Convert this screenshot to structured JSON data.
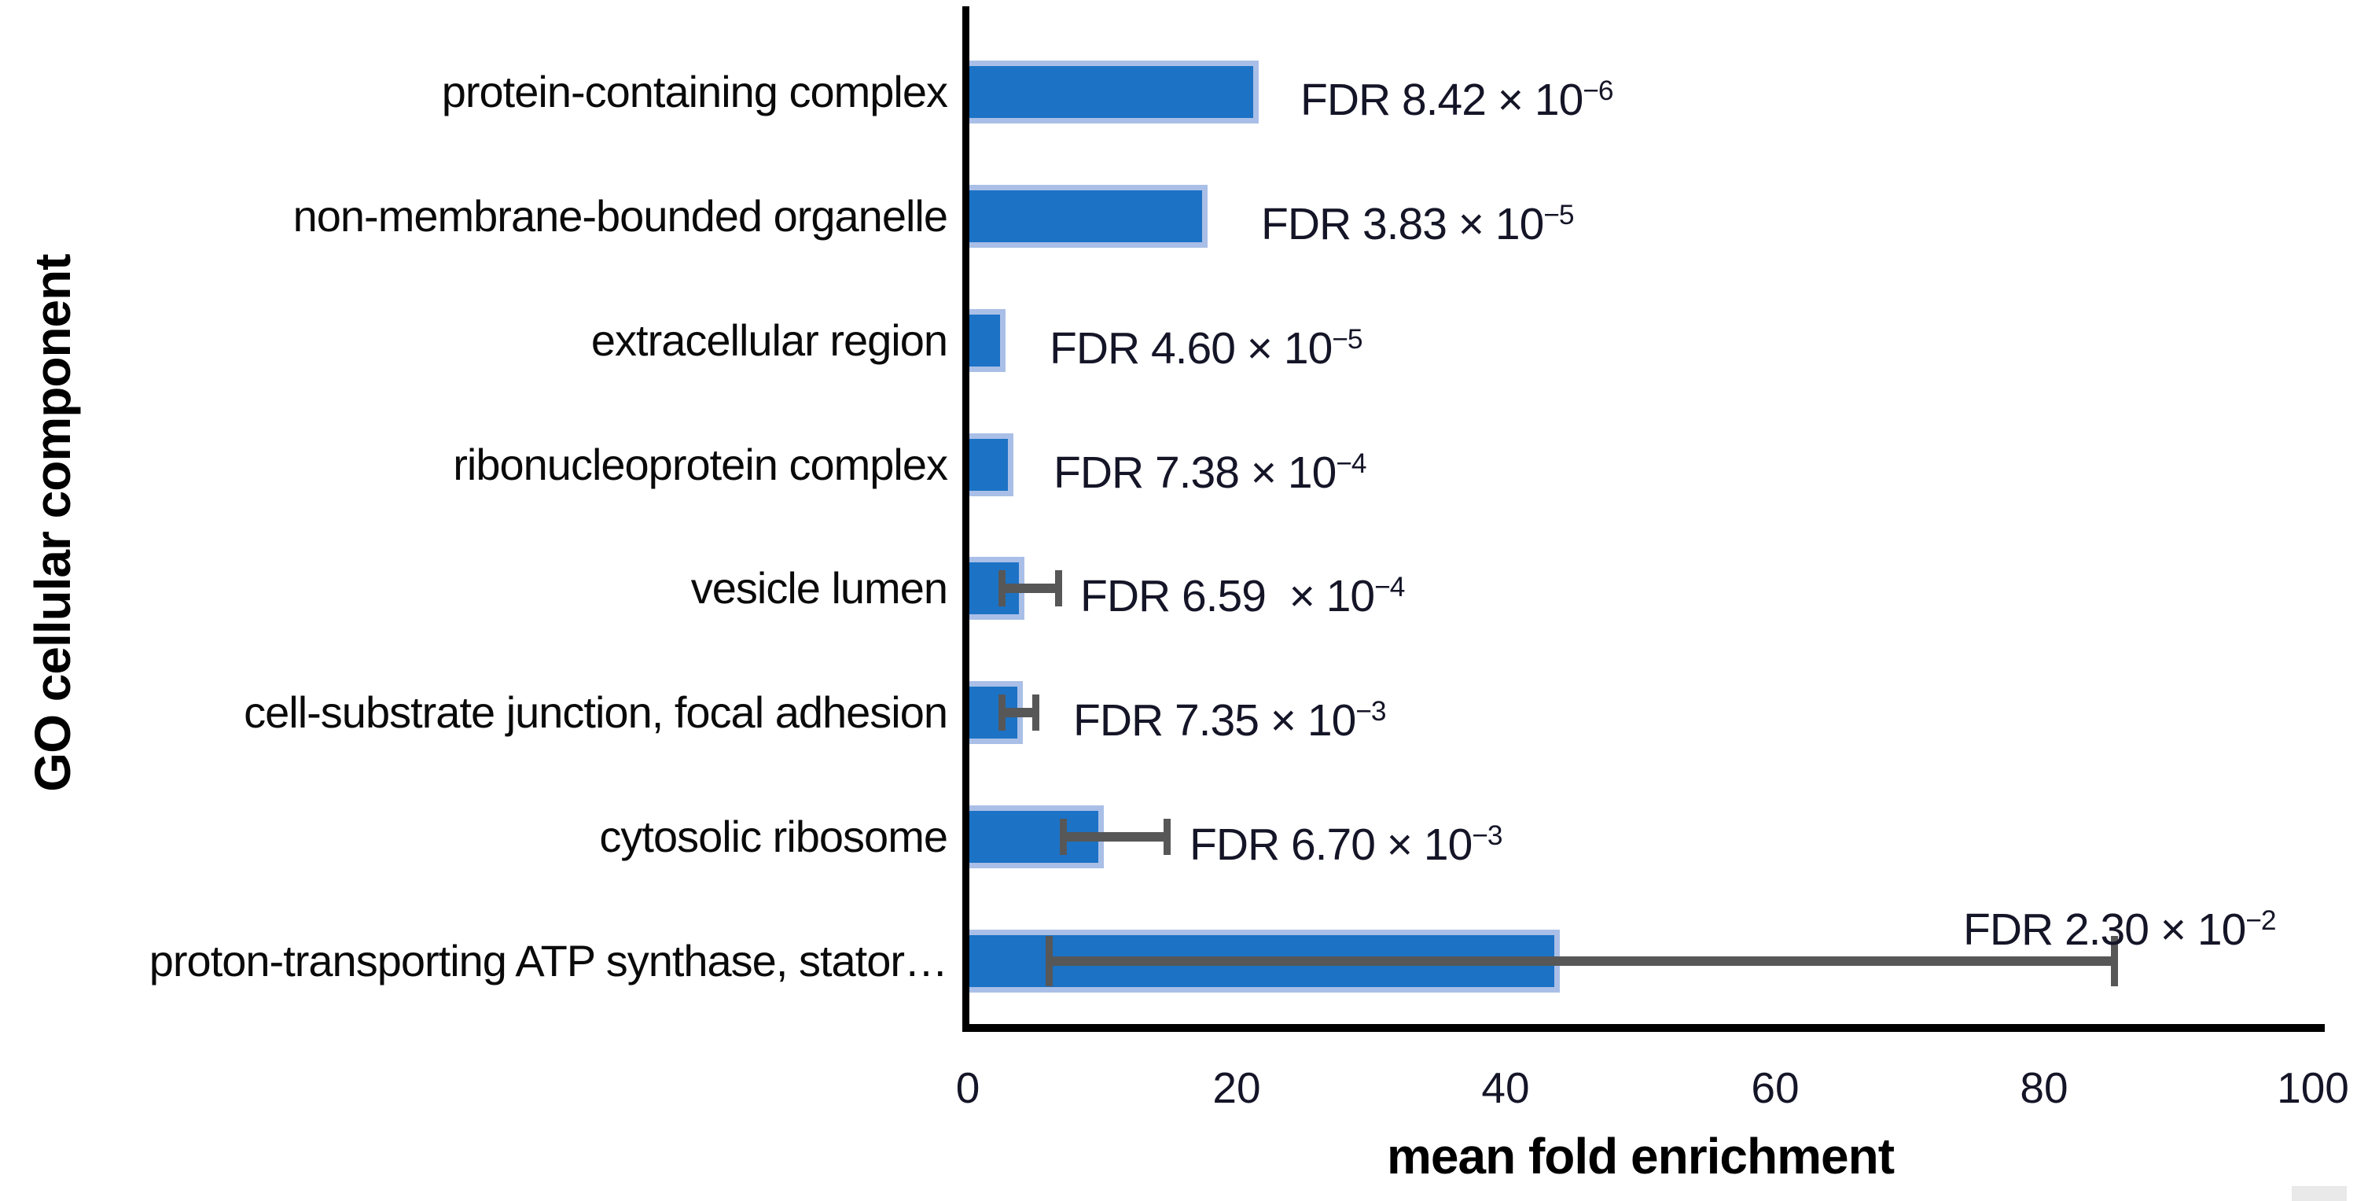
{
  "figure": {
    "y_axis_title": "GO cellular component",
    "x_axis_title": "mean fold enrichment"
  },
  "chart_data": {
    "type": "bar",
    "orientation": "horizontal",
    "title": "",
    "xlabel": "mean fold enrichment",
    "ylabel": "GO cellular component",
    "xlim": [
      0,
      100
    ],
    "x_ticks": [
      0,
      20,
      40,
      60,
      80,
      100
    ],
    "x_tick_labels": [
      "0",
      "20",
      "40",
      "60",
      "80",
      "100"
    ],
    "grid": false,
    "legend": "none",
    "bar_color": "#1c72c5",
    "bar_border_color": "#a9bfe7",
    "error_bar_color": "#575757",
    "rows": [
      {
        "category": "protein-containing complex",
        "value": 21.5,
        "err_low": null,
        "err_high": null,
        "fdr_prefix": "FDR 8.42 × 10",
        "fdr_exp": "−6"
      },
      {
        "category": "non-membrane-bounded organelle",
        "value": 17.7,
        "err_low": null,
        "err_high": null,
        "fdr_prefix": "FDR 3.83 × 10",
        "fdr_exp": "−5"
      },
      {
        "category": "extracellular region",
        "value": 2.7,
        "err_low": null,
        "err_high": null,
        "fdr_prefix": "FDR 4.60 × 10",
        "fdr_exp": "−5"
      },
      {
        "category": "ribonucleoprotein complex",
        "value": 3.3,
        "err_low": null,
        "err_high": null,
        "fdr_prefix": "FDR 7.38 × 10",
        "fdr_exp": "−4"
      },
      {
        "category": "vesicle lumen",
        "value": 4.1,
        "err_low": 2.5,
        "err_high": 6.7,
        "fdr_prefix": "FDR 6.59  × 10",
        "fdr_exp": "−4"
      },
      {
        "category": "cell-substrate junction, focal adhesion",
        "value": 4.0,
        "err_low": 2.5,
        "err_high": 5.0,
        "fdr_prefix": "FDR 7.35 × 10",
        "fdr_exp": "−3"
      },
      {
        "category": "cytosolic ribosome",
        "value": 10.0,
        "err_low": 7.1,
        "err_high": 14.8,
        "fdr_prefix": "FDR 6.70 × 10",
        "fdr_exp": "−3"
      },
      {
        "category": "proton-transporting ATP synthase, stator…",
        "value": 43.9,
        "err_low": 6.0,
        "err_high": 85.2,
        "fdr_prefix": "FDR 2.30 × 10",
        "fdr_exp": "−2"
      }
    ]
  }
}
